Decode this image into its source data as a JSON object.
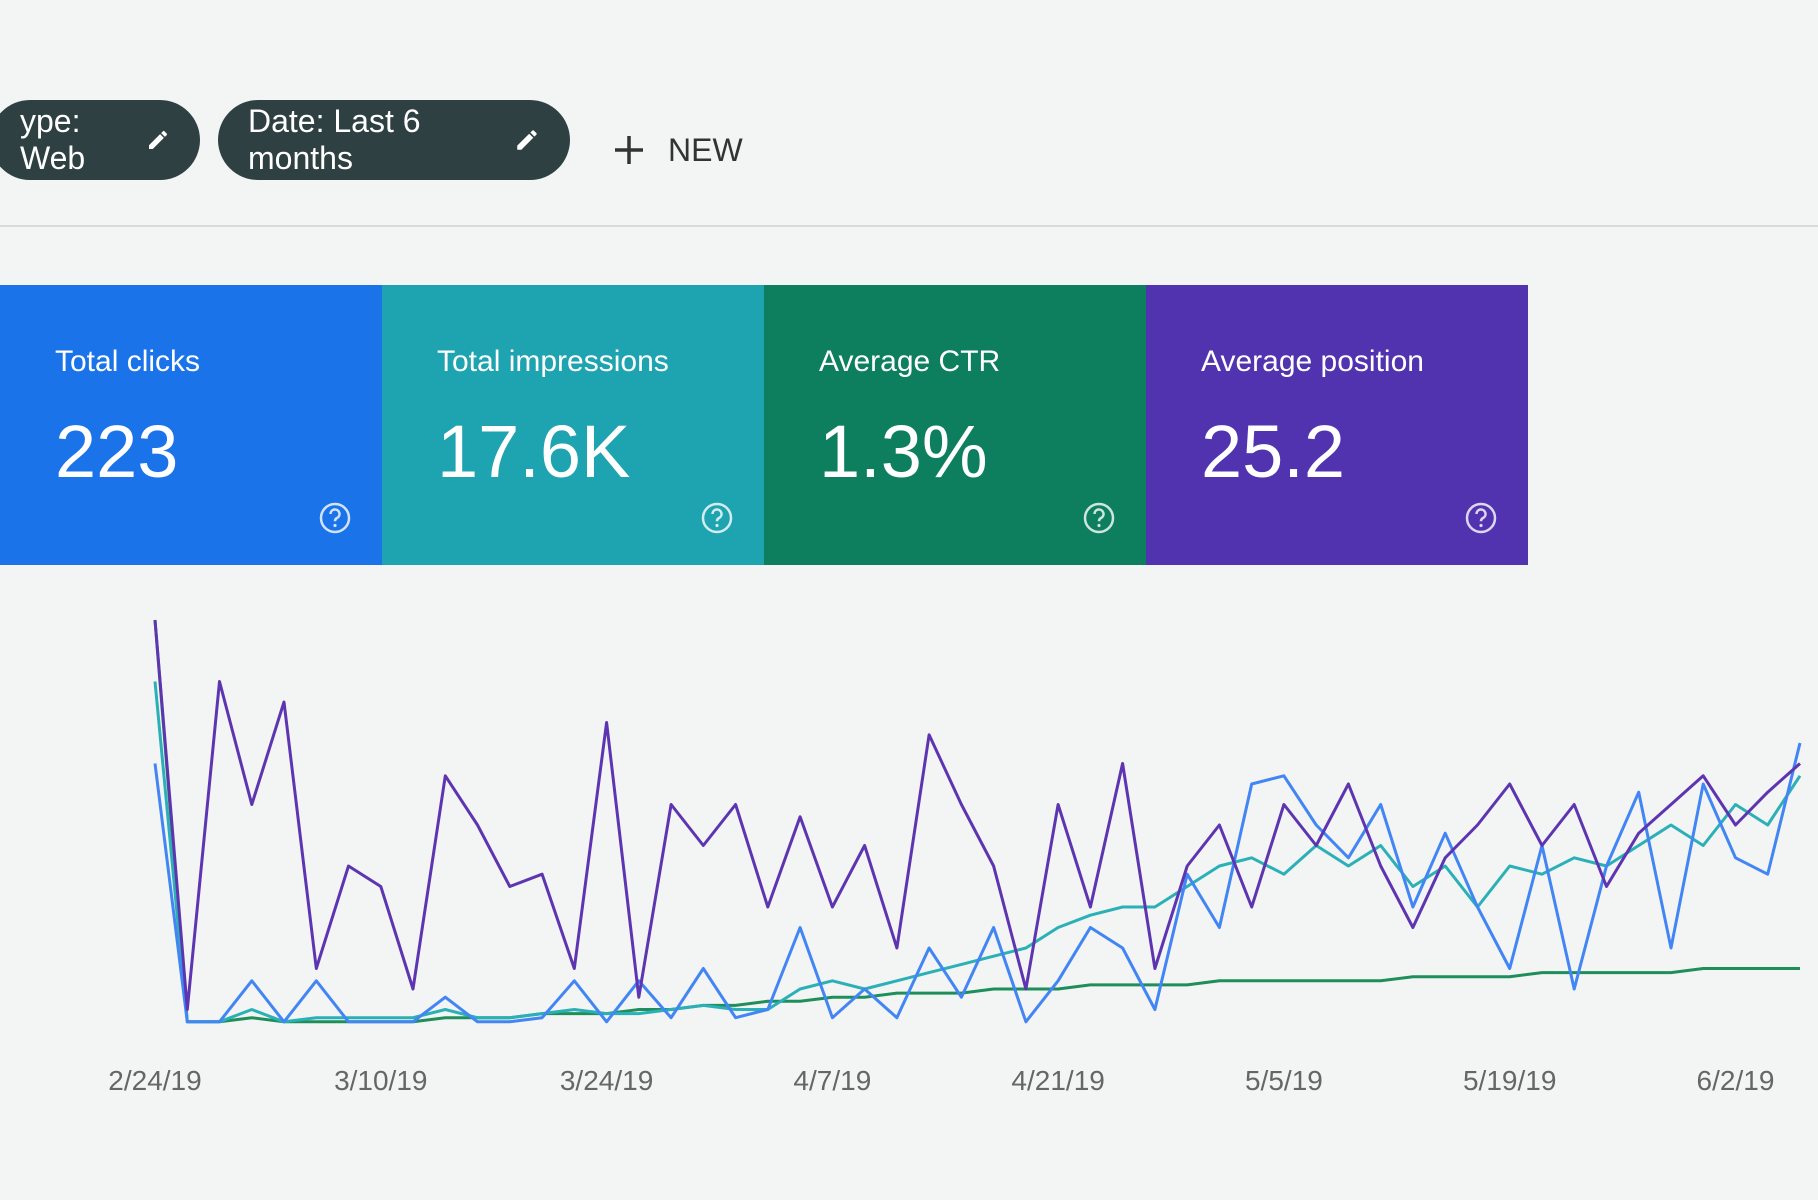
{
  "filters": {
    "chips": [
      "ype: Web",
      "Date: Last 6 months"
    ],
    "new_button": "NEW"
  },
  "cards": [
    {
      "label": "Total clicks",
      "value": "223",
      "color": "#1a73e8"
    },
    {
      "label": "Total impressions",
      "value": "17.6K",
      "color": "#1ea3b0"
    },
    {
      "label": "Average CTR",
      "value": "1.3%",
      "color": "#0d7f5f"
    },
    {
      "label": "Average position",
      "value": "25.2",
      "color": "#5133b0"
    }
  ],
  "chart_data": {
    "type": "line",
    "categories": [
      "2/24/19",
      null,
      null,
      null,
      null,
      null,
      null,
      "3/10/19",
      null,
      null,
      null,
      null,
      null,
      null,
      "3/24/19",
      null,
      null,
      null,
      null,
      null,
      null,
      "4/7/19",
      null,
      null,
      null,
      null,
      null,
      null,
      "4/21/19",
      null,
      null,
      null,
      null,
      null,
      null,
      "5/5/19",
      null,
      null,
      null,
      null,
      null,
      null,
      "5/19/19",
      null,
      null,
      null,
      null,
      null,
      null,
      "6/2/19",
      null,
      null
    ],
    "ylim": [
      0,
      100
    ],
    "series": [
      {
        "color": "#5e35b1",
        "values": [
          100,
          5,
          85,
          55,
          80,
          15,
          40,
          35,
          10,
          62,
          50,
          35,
          38,
          15,
          75,
          8,
          55,
          45,
          55,
          30,
          52,
          30,
          45,
          20,
          72,
          55,
          40,
          10,
          55,
          30,
          65,
          15,
          40,
          50,
          30,
          55,
          45,
          60,
          40,
          25,
          42,
          50,
          60,
          45,
          55,
          35,
          48,
          55,
          62,
          50,
          58,
          65
        ]
      },
      {
        "color": "#4285f4",
        "values": [
          65,
          2,
          2,
          12,
          2,
          12,
          2,
          2,
          2,
          8,
          2,
          2,
          3,
          12,
          2,
          12,
          3,
          15,
          3,
          5,
          25,
          3,
          10,
          3,
          20,
          8,
          25,
          2,
          12,
          25,
          20,
          5,
          38,
          25,
          60,
          62,
          50,
          42,
          55,
          30,
          48,
          30,
          15,
          45,
          10,
          40,
          58,
          20,
          60,
          42,
          38,
          70
        ]
      },
      {
        "color": "#2bb0b8",
        "values": [
          85,
          2,
          2,
          5,
          2,
          3,
          3,
          3,
          3,
          5,
          3,
          3,
          4,
          5,
          4,
          4,
          5,
          6,
          5,
          5,
          10,
          12,
          10,
          12,
          14,
          16,
          18,
          20,
          25,
          28,
          30,
          30,
          35,
          40,
          42,
          38,
          45,
          40,
          45,
          35,
          40,
          30,
          40,
          38,
          42,
          40,
          45,
          50,
          45,
          55,
          50,
          62
        ]
      },
      {
        "color": "#1e8e5a",
        "values": [
          100,
          2,
          2,
          3,
          2,
          2,
          2,
          2,
          2,
          3,
          3,
          3,
          4,
          4,
          4,
          5,
          5,
          6,
          6,
          7,
          7,
          8,
          8,
          9,
          9,
          9,
          10,
          10,
          10,
          11,
          11,
          11,
          11,
          12,
          12,
          12,
          12,
          12,
          12,
          13,
          13,
          13,
          13,
          14,
          14,
          14,
          14,
          14,
          15,
          15,
          15,
          15
        ]
      }
    ]
  }
}
